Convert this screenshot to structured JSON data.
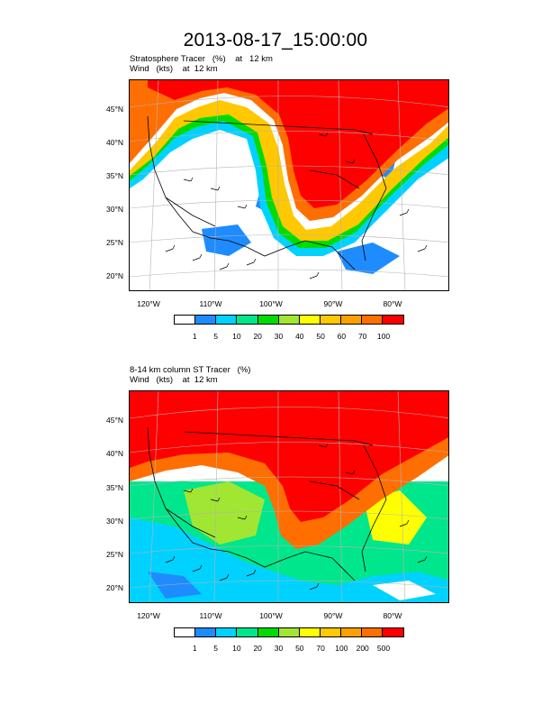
{
  "title": "2013-08-17_15:00:00",
  "panel1": {
    "line1": "Stratosphere Tracer   (%)    at   12 km",
    "line2": "Wind   (kts)    at  12 km",
    "lat_labels": [
      "45°N",
      "40°N",
      "35°N",
      "30°N",
      "25°N",
      "20°N"
    ],
    "lon_labels": [
      "120°W",
      "110°W",
      "100°W",
      "90°W",
      "80°W"
    ],
    "colorbar": {
      "colors": [
        "#ffffff",
        "#1e8cff",
        "#00d2ff",
        "#00e68c",
        "#00dc00",
        "#a0e632",
        "#ffff00",
        "#ffc800",
        "#ffa000",
        "#ff6e00",
        "#ff0000"
      ],
      "ticks": [
        "1",
        "5",
        "10",
        "20",
        "30",
        "40",
        "50",
        "60",
        "70",
        "100"
      ]
    }
  },
  "panel2": {
    "line1": "8-14 km column ST Tracer   (%)",
    "line2": "Wind   (kts)    at  12 km",
    "lat_labels": [
      "45°N",
      "40°N",
      "35°N",
      "30°N",
      "25°N",
      "20°N"
    ],
    "lon_labels": [
      "120°W",
      "110°W",
      "100°W",
      "90°W",
      "80°W"
    ],
    "colorbar": {
      "colors": [
        "#ffffff",
        "#1e8cff",
        "#00d2ff",
        "#00e68c",
        "#00dc00",
        "#a0e632",
        "#ffff00",
        "#ffc800",
        "#ffa000",
        "#ff6e00",
        "#ff0000"
      ],
      "ticks": [
        "1",
        "5",
        "10",
        "20",
        "30",
        "50",
        "70",
        "100",
        "200",
        "500"
      ]
    }
  }
}
